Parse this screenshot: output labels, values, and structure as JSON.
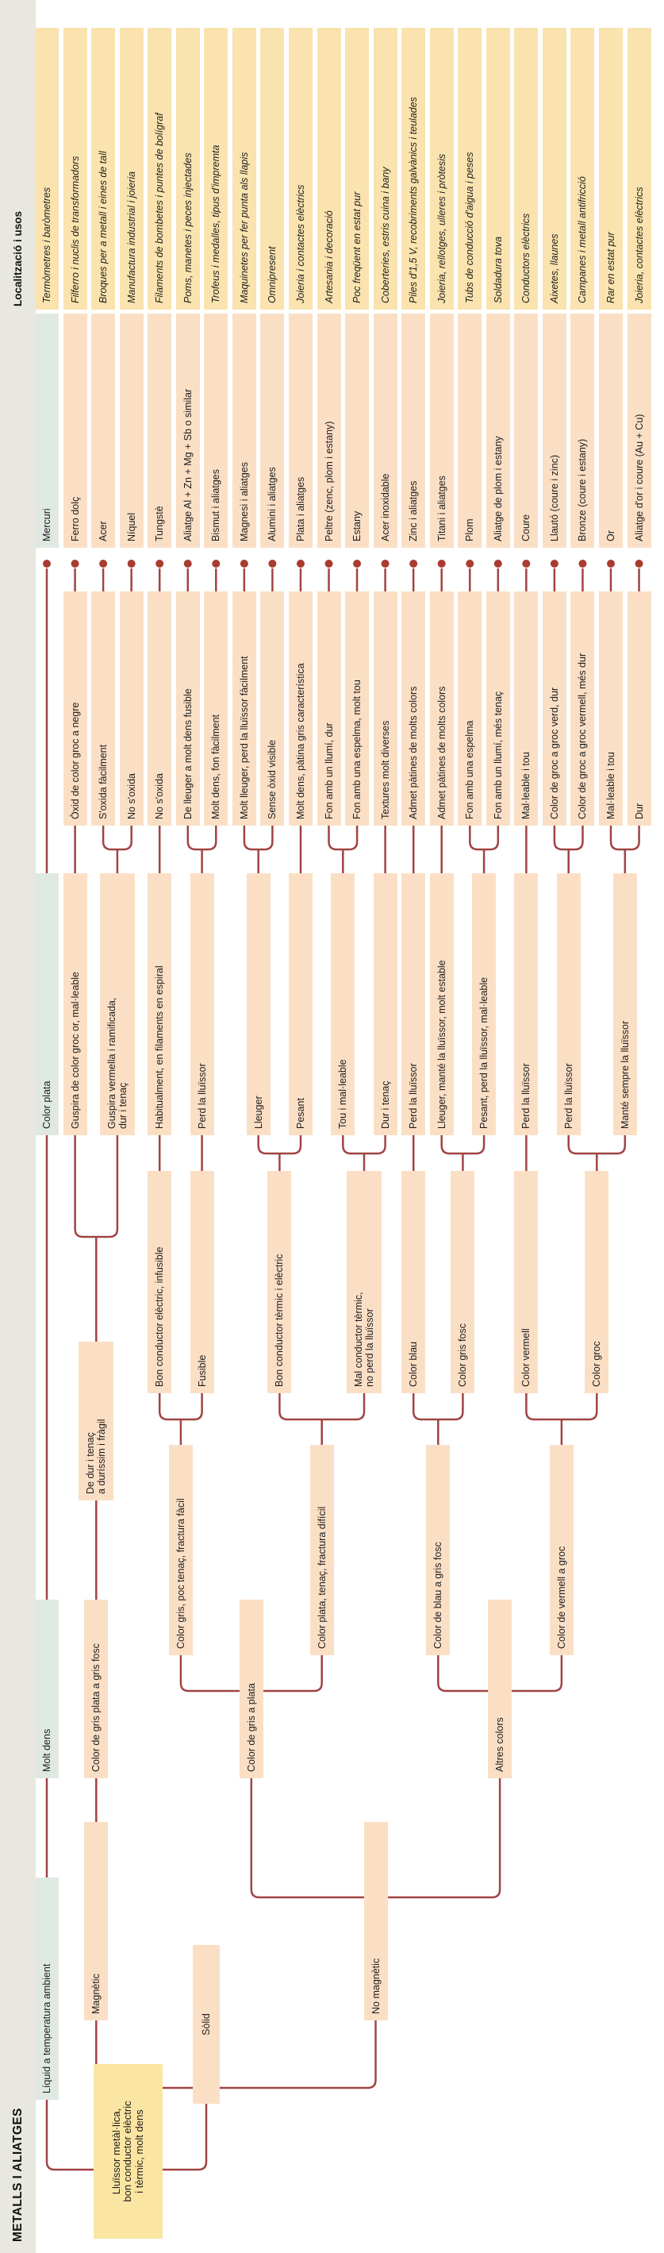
{
  "title": "METALLS I ALIATGES",
  "uses_header": "Localització i usos",
  "colors": {
    "line": "#a04442",
    "dot": "#aa3b30",
    "peach": "#fbdfc5",
    "yellow": "#fae3ae",
    "green": "#dfe9e2",
    "rootyellow": "#fbe5a2",
    "band": "#e8e8e0"
  },
  "nodes": {
    "root": "Lluïssor metàl·lica,\nbon conductor elèctric\ni tèrmic, molt dens",
    "liquid": "Líquid a temperatura ambient",
    "solid": "Sòlid",
    "magnetic": "Magnètic",
    "non_magnetic": "No magnètic",
    "molt_dens": "Molt dens",
    "gris_plata_fosc": "Color de gris plata a gris fosc",
    "gris_a_plata": "Color de gris a plata",
    "altres_colors": "Altres colors",
    "de_dur": "De dur i tenaç\na duríssim i fràgil",
    "gris_poc_tenac": "Color gris, poc tenaç, fractura fàcil",
    "plata_tenac": "Color plata, tenaç, fractura difícil",
    "blau_a_gris_fosc": "Color de blau a gris fosc",
    "vermell_a_groc": "Color de vermell a groc",
    "bon_cond_elec": "Bon conductor elèctric, infusible",
    "fusible": "Fusible",
    "bon_cond_term": "Bon conductor tèrmic i elèctric",
    "mal_cond_term": "Mal conductor tèrmic,\nno perd la lluïssor",
    "color_blau": "Color blau",
    "color_gris_fosc": "Color gris fosc",
    "color_vermell": "Color vermell",
    "color_groc": "Color groc",
    "color_plata": "Color plata",
    "guspira_or": "Guspira de color groc or, mal·leable",
    "guspira_vermella": "Guspira vermella i ramificada,\ndur i tenaç",
    "filaments": "Habitualment, en filaments en espiral",
    "perd_fusible": "Perd la lluïssor",
    "lleuger": "Lleuger",
    "pesant": "Pesant",
    "tou_malleable": "Tou i mal·leable",
    "dur_i_tenac": "Dur i tenaç",
    "perd_zinc": "Perd la lluïssor",
    "lleuger_mante": "Lleuger, manté la lluïssor, molt estable",
    "pesant_perd": "Pesant, perd la lluïssor, mal·leable",
    "perd_coure": "Perd la lluïssor",
    "perd_llauto": "Perd la lluïssor",
    "mante_sempre": "Manté sempre la lluïssor"
  },
  "rows": [
    {
      "trait": null,
      "metal": "Mercuri",
      "use": "Termòmetres i baròmetres",
      "green": true
    },
    {
      "trait": "Òxid de color groc a negre",
      "metal": "Ferro dolç",
      "use": "Filferro i nuclis de transformadors"
    },
    {
      "trait": "S'oxida fàcilment",
      "metal": "Acer",
      "use": "Broques per a metall i eines de tall"
    },
    {
      "trait": "No s'oxida",
      "metal": "Níquel",
      "use": "Manufactura industrial i joieria"
    },
    {
      "trait": "No s'oxida",
      "metal": "Tungstè",
      "use": "Filaments de bombetes i puntes de bolígraf"
    },
    {
      "trait": "De lleuger a molt dens fusible",
      "metal": "Aliatge Al + Zn + Mg + Sb o similar",
      "use": "Poms, manetes i peces injectades"
    },
    {
      "trait": "Molt dens, fon fàcilment",
      "metal": "Bismut i aliatges",
      "use": "Trofeus i medalles, tipus d'impremta"
    },
    {
      "trait": "Molt lleuger, perd la lluïssor fàcilment",
      "metal": "Magnesi i aliatges",
      "use": "Maquinetes per fer punta als llapis"
    },
    {
      "trait": "Sense òxid visible",
      "metal": "Alumini i aliatges",
      "use": "Omnipresent"
    },
    {
      "trait": "Molt dens, pàtina gris característica",
      "metal": "Plata i aliatges",
      "use": "Joieria i contactes elèctrics"
    },
    {
      "trait": "Fon amb un llumí, dur",
      "metal": "Peltre (zenc, plom i estany)",
      "use": "Artesania i decoració"
    },
    {
      "trait": "Fon amb una espelma, molt tou",
      "metal": "Estany",
      "use": "Poc freqüent en estat pur"
    },
    {
      "trait": "Textures molt diverses",
      "metal": "Acer inoxidable",
      "use": "Coberteries, estris cuina i bany"
    },
    {
      "trait": "Admet pàtines de molts colors",
      "metal": "Zinc i aliatges",
      "use": "Piles d'1,5 V, recobriments galvànics i teulades"
    },
    {
      "trait": "Admet pàtines de molts colors",
      "metal": "Titani i aliatges",
      "use": "Joieria, rellotges, ulleres i pròtesis"
    },
    {
      "trait": "Fon amb una espelma",
      "metal": "Plom",
      "use": "Tubs de conducció d'aigua i peses"
    },
    {
      "trait": "Fon amb un llumí, més tenaç",
      "metal": "Aliatge de plom i estany",
      "use": "Soldadura tova"
    },
    {
      "trait": "Mal·leable i tou",
      "metal": "Coure",
      "use": "Conductors elèctrics"
    },
    {
      "trait": "Color de groc a groc verd, dur",
      "metal": "Llautó (coure i zinc)",
      "use": "Aixetes, llaunes"
    },
    {
      "trait": "Color de groc a groc vermell, més dur",
      "metal": "Bronze (coure i estany)",
      "use": "Campanes i metall antifricció"
    },
    {
      "trait": "Mal·leable i tou",
      "metal": "Or",
      "use": "Rar en estat pur"
    },
    {
      "trait": "Dur",
      "metal": "Aliatge d'or i coure (Au + Cu)",
      "use": "Joieria, contactes elèctrics"
    }
  ]
}
